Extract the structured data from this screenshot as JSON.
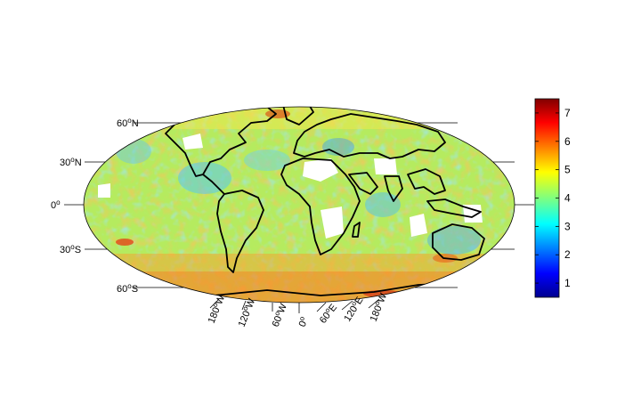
{
  "map": {
    "projection": "Mollweide (Hammer-Aitoff style)",
    "field_colormap": "jet",
    "background_value_dominant": 4,
    "coastline_color": "#000000",
    "missing_data_color": "#ffffff",
    "outline_fill": "#c8e05a"
  },
  "lat_labels": [
    {
      "deg": "60",
      "sup": "o",
      "hem": "N"
    },
    {
      "deg": "30",
      "sup": "o",
      "hem": "N"
    },
    {
      "deg": "0",
      "sup": "o",
      "hem": ""
    },
    {
      "deg": "30",
      "sup": "o",
      "hem": "S"
    },
    {
      "deg": "60",
      "sup": "o",
      "hem": "S"
    }
  ],
  "lon_labels": [
    {
      "deg": "180",
      "sup": "o",
      "hem": "W"
    },
    {
      "deg": "120",
      "sup": "o",
      "hem": "W"
    },
    {
      "deg": "60",
      "sup": "o",
      "hem": "W"
    },
    {
      "deg": "0",
      "sup": "o",
      "hem": ""
    },
    {
      "deg": "60",
      "sup": "o",
      "hem": "E"
    },
    {
      "deg": "120",
      "sup": "o",
      "hem": "E"
    },
    {
      "deg": "180",
      "sup": "o",
      "hem": "W"
    }
  ],
  "colorbar": {
    "ticks": [
      "7",
      "6",
      "5",
      "4",
      "3",
      "2",
      "1"
    ],
    "tick_values": [
      7,
      6,
      5,
      4,
      3,
      2,
      1
    ],
    "min": 0.5,
    "max": 7.5,
    "colormap": "jet"
  }
}
